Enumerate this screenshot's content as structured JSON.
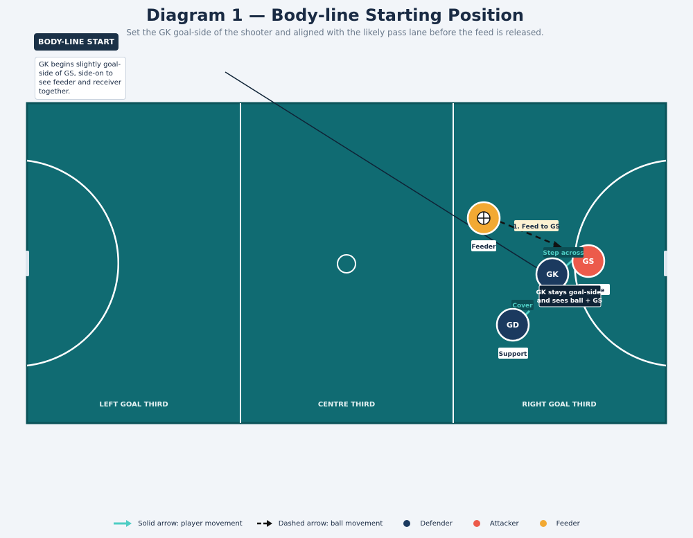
{
  "header": {
    "title": "Diagram 1 — Body-line Starting Position",
    "subtitle": "Set the GK goal-side of the shooter and aligned with the likely pass lane before the feed is released."
  },
  "callout": {
    "badge": "BODY-LINE START",
    "note": "GK begins slightly goal-side of GS, side-on to see feeder and receiver together."
  },
  "court": {
    "thirds": [
      "LEFT GOAL THIRD",
      "CENTRE THIRD",
      "RIGHT GOAL THIRD"
    ]
  },
  "players": {
    "feeder_label": "Feeder",
    "gs": "GS",
    "gs_tag": "Space",
    "gk": "GK",
    "gk_tag": "GK stays goal-side and sees ball + GS",
    "gd": "GD",
    "gd_tag": "Support"
  },
  "annotations": {
    "feed": "1. Feed to GS",
    "step": "Step across",
    "cover": "Cover"
  },
  "legend": {
    "player_movement": "Solid arrow: player movement",
    "ball_movement": "Dashed arrow: ball movement",
    "defender": "Defender",
    "attacker": "Attacker",
    "feeder": "Feeder"
  },
  "colors": {
    "court": "#106b72",
    "defender": "#1b3a5f",
    "attacker": "#ec5b4b",
    "feeder": "#f2a933",
    "movement": "#4ecdc4"
  }
}
